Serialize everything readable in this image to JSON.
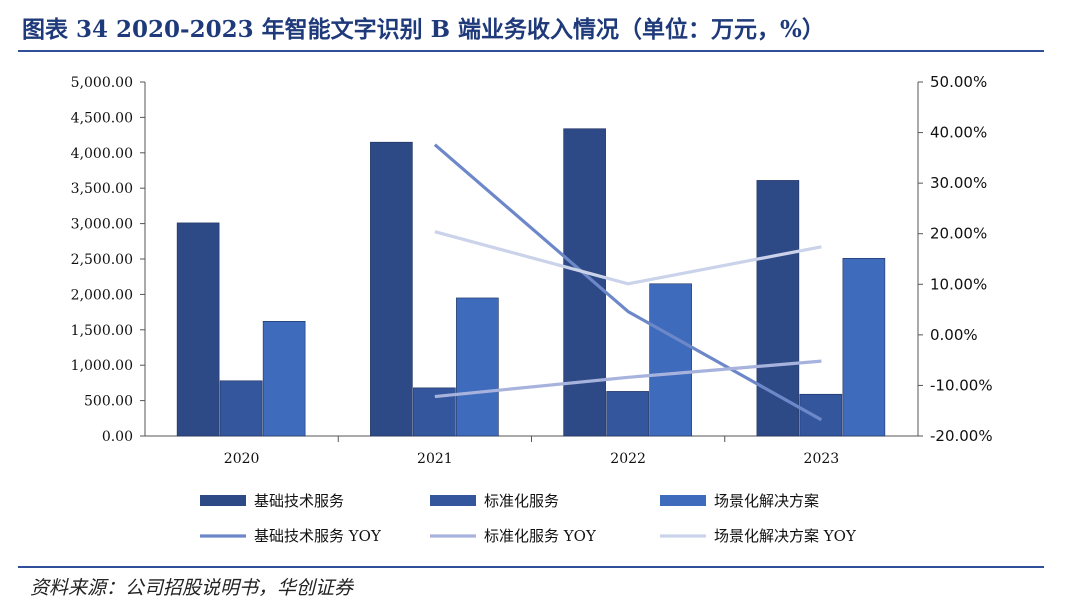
{
  "title": "图表 34   2020-2023 年智能文字识别 B 端业务收入情况（单位：万元，%）",
  "source": "资料来源：公司招股说明书，华创证券",
  "colors": {
    "bar1": "#2e4a86",
    "bar2": "#34569d",
    "bar3": "#3f6bbd",
    "yoy1": "#6d88c8",
    "yoy2": "#a7b3dc",
    "yoy3": "#cbd3ea"
  },
  "chart_data": {
    "type": "bar",
    "categories": [
      "2020",
      "2021",
      "2022",
      "2023"
    ],
    "ylim": [
      0,
      5000
    ],
    "y_ticks": [
      "0.00",
      "500.00",
      "1,000.00",
      "1,500.00",
      "2,000.00",
      "2,500.00",
      "3,000.00",
      "3,500.00",
      "4,000.00",
      "4,500.00",
      "5,000.00"
    ],
    "y2lim": [
      -20,
      50
    ],
    "y2_ticks": [
      "-20.00%",
      "-10.00%",
      "0.00%",
      "10.00%",
      "20.00%",
      "30.00%",
      "40.00%",
      "50.00%"
    ],
    "series": [
      {
        "name": "基础技术服务",
        "type": "bar",
        "values": [
          3010,
          4150,
          4340,
          3610
        ]
      },
      {
        "name": "标准化服务",
        "type": "bar",
        "values": [
          780,
          680,
          630,
          590
        ]
      },
      {
        "name": "场景化解决方案",
        "type": "bar",
        "values": [
          1620,
          1950,
          2150,
          2510
        ]
      },
      {
        "name": "基础技术服务 YOY",
        "type": "line",
        "axis": "right",
        "values": [
          null,
          37.6,
          4.6,
          -16.8
        ]
      },
      {
        "name": "标准化服务 YOY",
        "type": "line",
        "axis": "right",
        "values": [
          null,
          -12.2,
          -8.4,
          -5.2
        ]
      },
      {
        "name": "场景化解决方案 YOY",
        "type": "line",
        "axis": "right",
        "values": [
          null,
          20.4,
          10.1,
          17.4
        ]
      }
    ],
    "legend_position": "bottom"
  }
}
